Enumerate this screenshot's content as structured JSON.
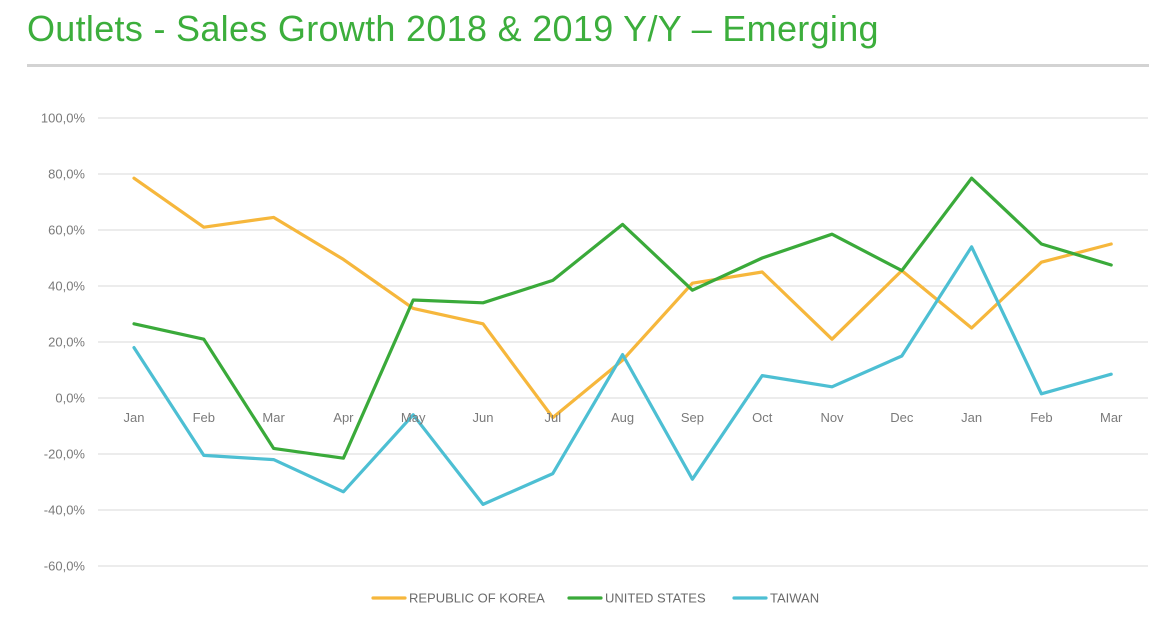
{
  "title": "Outlets - Sales Growth 2018 & 2019 Y/Y – Emerging",
  "colors": {
    "title": "#3cae3c",
    "republic_of_korea": "#f6b73c",
    "united_states": "#3aaa3a",
    "taiwan": "#4dbfd3",
    "grid": "#d9d9d9",
    "tick_text": "#7a7a7a"
  },
  "chart_data": {
    "type": "line",
    "categories": [
      "Jan",
      "Feb",
      "Mar",
      "Apr",
      "May",
      "Jun",
      "Jul",
      "Aug",
      "Sep",
      "Oct",
      "Nov",
      "Dec",
      "Jan",
      "Feb",
      "Mar"
    ],
    "y_tick_labels": [
      "100,0%",
      "80,0%",
      "60,0%",
      "40,0%",
      "20,0%",
      "0,0%",
      "-20,0%",
      "-40,0%",
      "-60,0%"
    ],
    "ylim": [
      -60,
      100
    ],
    "y_unit": "%",
    "grid": true,
    "legend_position": "bottom",
    "series": [
      {
        "name": "REPUBLIC OF KOREA",
        "color": "#f6b73c",
        "values": [
          78.5,
          61,
          64.5,
          49.5,
          32,
          26.5,
          -7,
          13.5,
          41,
          45,
          21,
          45.5,
          25,
          48.5,
          55
        ]
      },
      {
        "name": "UNITED STATES",
        "color": "#3aaa3a",
        "values": [
          26.5,
          21,
          -18,
          -21.5,
          35,
          34,
          42,
          62,
          38.5,
          50,
          58.5,
          45.5,
          78.5,
          55,
          47.5
        ]
      },
      {
        "name": "TAIWAN",
        "color": "#4dbfd3",
        "values": [
          18,
          -20.5,
          -22,
          -33.5,
          -6,
          -38,
          -27,
          15.5,
          -29,
          8,
          4,
          15,
          54,
          1.5,
          8.5
        ]
      }
    ]
  }
}
